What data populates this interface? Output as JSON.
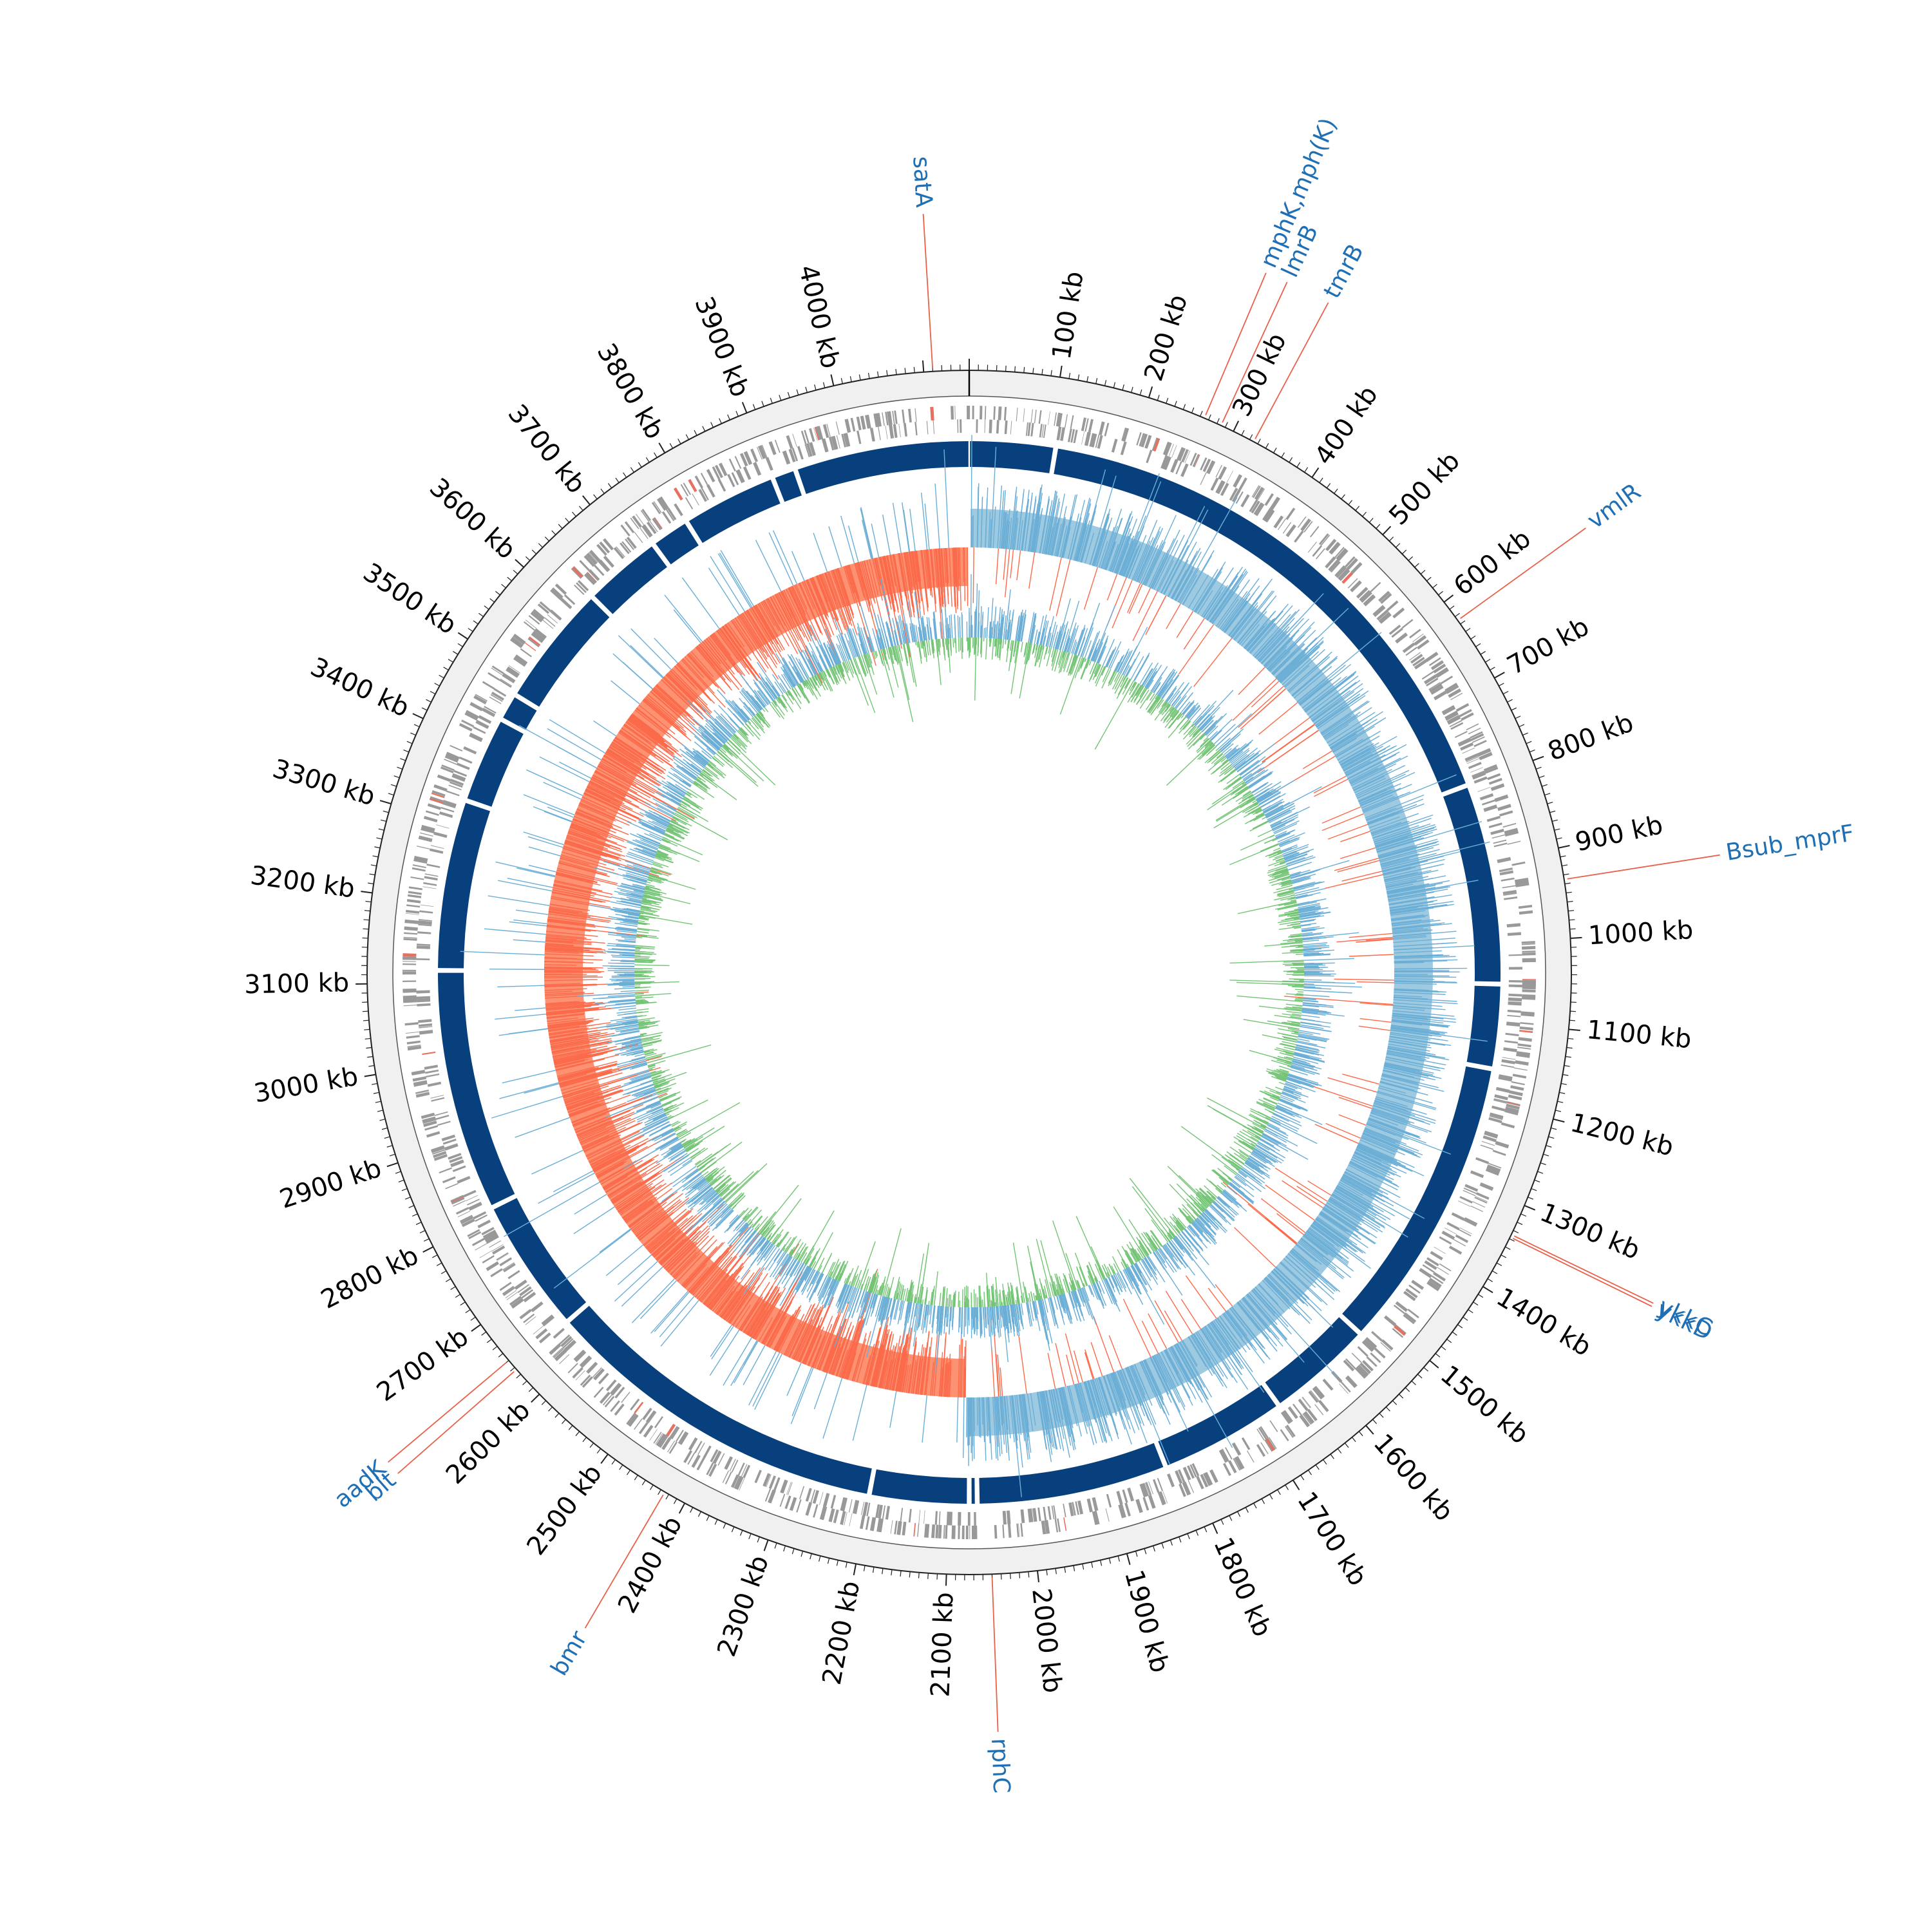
{
  "genome": {
    "total_kb": 4150,
    "unit": "kb",
    "tick_labels": [
      "100 kb",
      "200 kb",
      "300 kb",
      "400 kb",
      "500 kb",
      "600 kb",
      "700 kb",
      "800 kb",
      "900 kb",
      "1000 kb",
      "1100 kb",
      "1200 kb",
      "1300 kb",
      "1400 kb",
      "1500 kb",
      "1600 kb",
      "1700 kb",
      "1800 kb",
      "1900 kb",
      "2000 kb",
      "2100 kb",
      "2200 kb",
      "2300 kb",
      "2400 kb",
      "2500 kb",
      "2600 kb",
      "2700 kb",
      "2800 kb",
      "2900 kb",
      "3000 kb",
      "3100 kb",
      "3200 kb",
      "3300 kb",
      "3400 kb",
      "3500 kb",
      "3600 kb",
      "3700 kb",
      "3800 kb",
      "3900 kb",
      "4000 kb"
    ]
  },
  "gene_labels": [
    {
      "label": "satA",
      "kb": 4110
    },
    {
      "label": "mphK,mph(K)",
      "kb": 265
    },
    {
      "label": "lmrB",
      "kb": 285
    },
    {
      "label": "tmrB",
      "kb": 325
    },
    {
      "label": "vmlR",
      "kb": 625
    },
    {
      "label": "Bsub_mprF",
      "kb": 935
    },
    {
      "label": "ykkC",
      "kb": 1335
    },
    {
      "label": "ykkD",
      "kb": 1338
    },
    {
      "label": "aadK",
      "kb": 2650
    },
    {
      "label": "blt",
      "kb": 2637
    },
    {
      "label": "bmr",
      "kb": 2425
    },
    {
      "label": "rphC",
      "kb": 2050
    }
  ],
  "contig_gaps_kb": [
    108,
    800,
    1052,
    1158,
    1530,
    1665,
    1825,
    2065,
    2075,
    2200,
    2640,
    2810,
    3115,
    3330,
    3440,
    3475,
    3630,
    3730,
    3780,
    3900,
    3930
  ],
  "colors": {
    "ring_background": "#f0f0f0",
    "gene_marks": "#999999",
    "gene_marks_highlight": "#e87060",
    "contig": "#08407e",
    "gc_skew_positive": "#6baed6",
    "gc_skew_positive_fill": "#9ecae1",
    "gc_skew_negative": "#fb6a4a",
    "gc_skew_negative_fill": "#fc9272",
    "gc_content_outer": "#6baed6",
    "gc_content_inner": "#74c476",
    "leader_line": "#e8604a",
    "gene_label_text": "#1f6fb4"
  }
}
